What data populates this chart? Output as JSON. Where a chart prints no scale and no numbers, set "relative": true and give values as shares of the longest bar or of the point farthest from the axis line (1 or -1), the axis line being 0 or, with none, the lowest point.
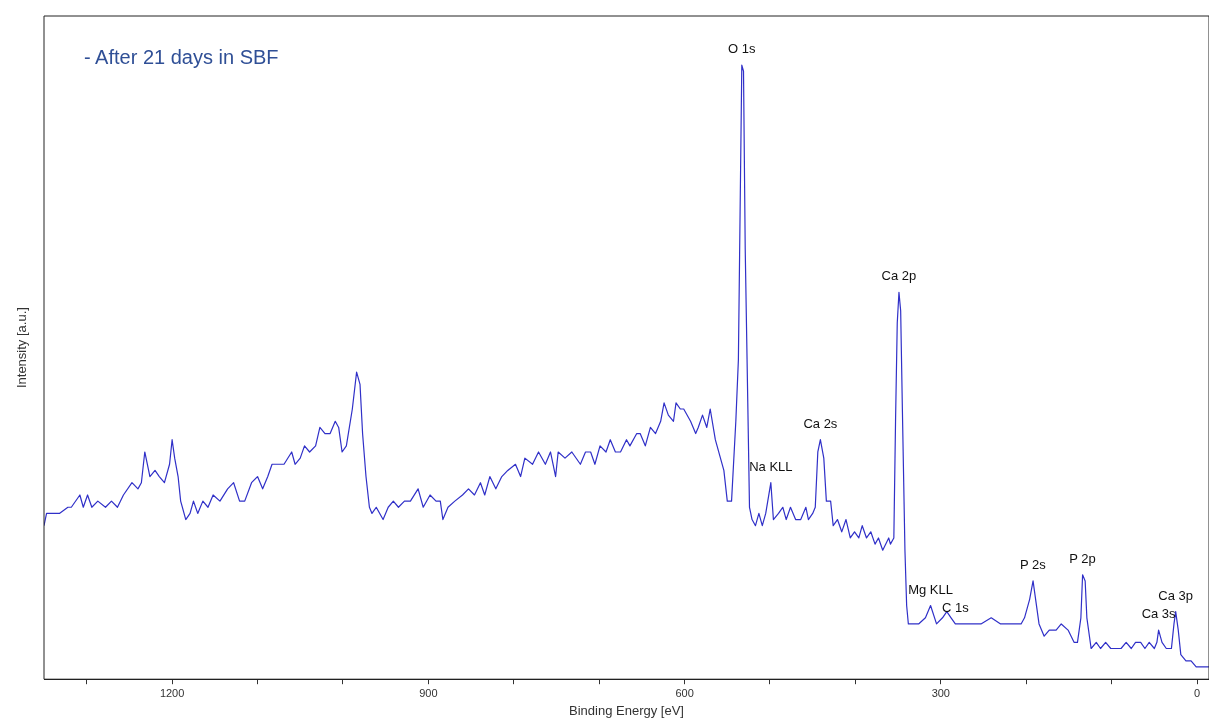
{
  "chart_data": {
    "type": "line",
    "title": "- After 21 days in SBF",
    "xlabel": "Binding Energy [eV]",
    "ylabel": "Intensity [a.u.]",
    "relative": true,
    "xlim": [
      1350,
      -14
    ],
    "xticks": [
      {
        "value": 1300,
        "label": null
      },
      1200,
      {
        "value": 1100,
        "label": null
      },
      {
        "value": 1000,
        "label": null
      },
      900,
      {
        "value": 800,
        "label": null
      },
      {
        "value": 700,
        "label": null
      },
      600,
      {
        "value": 500,
        "label": null
      },
      {
        "value": 400,
        "label": null
      },
      300,
      {
        "value": 200,
        "label": null
      },
      {
        "value": 100,
        "label": null
      },
      0
    ],
    "grid": false,
    "legend": false,
    "marker": "none",
    "line_style": "solid",
    "x": [
      1350,
      1347,
      1332,
      1322,
      1318,
      1308,
      1304,
      1299,
      1294,
      1287,
      1278,
      1271,
      1264,
      1257,
      1247,
      1240,
      1236,
      1232,
      1226,
      1220,
      1215,
      1209,
      1203,
      1200,
      1197,
      1193,
      1190,
      1184,
      1179,
      1175,
      1170,
      1164,
      1158,
      1152,
      1144,
      1135,
      1128,
      1121,
      1115,
      1107,
      1100,
      1094,
      1088,
      1083,
      1076,
      1069,
      1060,
      1056,
      1050,
      1045,
      1039,
      1032,
      1027,
      1021,
      1015,
      1009,
      1005,
      1001,
      996,
      989,
      984,
      980,
      977,
      973,
      969,
      966,
      961,
      953,
      947,
      941,
      935,
      928,
      921,
      912,
      906,
      898,
      891,
      886,
      883,
      877,
      869,
      860,
      853,
      846,
      839,
      834,
      828,
      821,
      814,
      807,
      798,
      792,
      787,
      778,
      771,
      763,
      757,
      751,
      748,
      740,
      732,
      722,
      716,
      710,
      705,
      699,
      692,
      687,
      681,
      675,
      668,
      664,
      656,
      652,
      646,
      640,
      634,
      628,
      624,
      619,
      613,
      610,
      605,
      601,
      593,
      587,
      584,
      579,
      574,
      570,
      564,
      558,
      554,
      550,
      545,
      540,
      537,
      535,
      533,
      531,
      529,
      526,
      524,
      521,
      517,
      513,
      509,
      505,
      499,
      496,
      490,
      485,
      481,
      476,
      470,
      464,
      458,
      455,
      450,
      447,
      444,
      441,
      437,
      434,
      429,
      426,
      421,
      416,
      411,
      406,
      401,
      396,
      392,
      387,
      382,
      377,
      373,
      368,
      361,
      359,
      355,
      353,
      351,
      349,
      347,
      345,
      342,
      340,
      338,
      333,
      326,
      318,
      312,
      305,
      298,
      293,
      288,
      283,
      277,
      265,
      253,
      241,
      230,
      218,
      206,
      202,
      196,
      192,
      189,
      185,
      179,
      173,
      165,
      159,
      151,
      144,
      140,
      136,
      134,
      131,
      129,
      124,
      118,
      113,
      107,
      101,
      95,
      89,
      83,
      77,
      72,
      66,
      61,
      56,
      50,
      47,
      45,
      41,
      36,
      30,
      27,
      25,
      22,
      19,
      13,
      7,
      1,
      -14
    ],
    "series": [
      {
        "color": "#3030c8",
        "values": [
          0.25,
          0.27,
          0.27,
          0.28,
          0.28,
          0.3,
          0.28,
          0.3,
          0.28,
          0.29,
          0.28,
          0.29,
          0.28,
          0.3,
          0.32,
          0.31,
          0.32,
          0.37,
          0.33,
          0.34,
          0.33,
          0.32,
          0.35,
          0.39,
          0.36,
          0.33,
          0.29,
          0.26,
          0.27,
          0.29,
          0.27,
          0.29,
          0.28,
          0.3,
          0.29,
          0.31,
          0.32,
          0.29,
          0.29,
          0.32,
          0.33,
          0.31,
          0.33,
          0.35,
          0.35,
          0.35,
          0.37,
          0.35,
          0.36,
          0.38,
          0.37,
          0.38,
          0.41,
          0.4,
          0.4,
          0.42,
          0.41,
          0.37,
          0.38,
          0.44,
          0.5,
          0.48,
          0.4,
          0.33,
          0.28,
          0.27,
          0.28,
          0.26,
          0.28,
          0.29,
          0.28,
          0.29,
          0.29,
          0.31,
          0.28,
          0.3,
          0.29,
          0.29,
          0.26,
          0.28,
          0.29,
          0.3,
          0.31,
          0.3,
          0.32,
          0.3,
          0.33,
          0.31,
          0.33,
          0.34,
          0.35,
          0.33,
          0.36,
          0.35,
          0.37,
          0.35,
          0.37,
          0.33,
          0.37,
          0.36,
          0.37,
          0.35,
          0.37,
          0.37,
          0.35,
          0.38,
          0.37,
          0.39,
          0.37,
          0.37,
          0.39,
          0.38,
          0.4,
          0.4,
          0.38,
          0.41,
          0.4,
          0.42,
          0.45,
          0.43,
          0.42,
          0.45,
          0.44,
          0.44,
          0.42,
          0.4,
          0.41,
          0.43,
          0.41,
          0.44,
          0.39,
          0.36,
          0.34,
          0.29,
          0.29,
          0.42,
          0.52,
          0.76,
          1.0,
          0.99,
          0.7,
          0.45,
          0.28,
          0.26,
          0.25,
          0.27,
          0.25,
          0.27,
          0.32,
          0.26,
          0.27,
          0.28,
          0.26,
          0.28,
          0.26,
          0.26,
          0.28,
          0.26,
          0.27,
          0.28,
          0.37,
          0.39,
          0.36,
          0.29,
          0.29,
          0.25,
          0.26,
          0.24,
          0.26,
          0.23,
          0.24,
          0.23,
          0.25,
          0.23,
          0.24,
          0.22,
          0.23,
          0.21,
          0.23,
          0.22,
          0.23,
          0.42,
          0.58,
          0.63,
          0.6,
          0.44,
          0.21,
          0.12,
          0.09,
          0.09,
          0.09,
          0.1,
          0.12,
          0.09,
          0.1,
          0.11,
          0.1,
          0.09,
          0.09,
          0.09,
          0.09,
          0.1,
          0.09,
          0.09,
          0.09,
          0.1,
          0.13,
          0.16,
          0.13,
          0.09,
          0.07,
          0.08,
          0.08,
          0.09,
          0.08,
          0.06,
          0.06,
          0.1,
          0.17,
          0.16,
          0.1,
          0.05,
          0.06,
          0.05,
          0.06,
          0.05,
          0.05,
          0.05,
          0.06,
          0.05,
          0.06,
          0.06,
          0.05,
          0.06,
          0.05,
          0.06,
          0.08,
          0.06,
          0.05,
          0.05,
          0.09,
          0.11,
          0.08,
          0.04,
          0.03,
          0.03,
          0.02,
          0.02
        ]
      }
    ],
    "annotations": [
      {
        "text": "O 1s",
        "x": 533,
        "y": 1.0
      },
      {
        "text": "Ca 2p",
        "x": 349,
        "y": 0.63
      },
      {
        "text": "Ca 2s",
        "x": 441,
        "y": 0.39
      },
      {
        "text": "Na KLL",
        "x": 499,
        "y": 0.32
      },
      {
        "text": "Mg KLL",
        "x": 312,
        "y": 0.12
      },
      {
        "text": "C 1s",
        "x": 283,
        "y": 0.09
      },
      {
        "text": "P 2s",
        "x": 192,
        "y": 0.16
      },
      {
        "text": "P 2p",
        "x": 134,
        "y": 0.17
      },
      {
        "text": "Ca 3s",
        "x": 45,
        "y": 0.08
      },
      {
        "text": "Ca 3p",
        "x": 25,
        "y": 0.11
      }
    ]
  }
}
